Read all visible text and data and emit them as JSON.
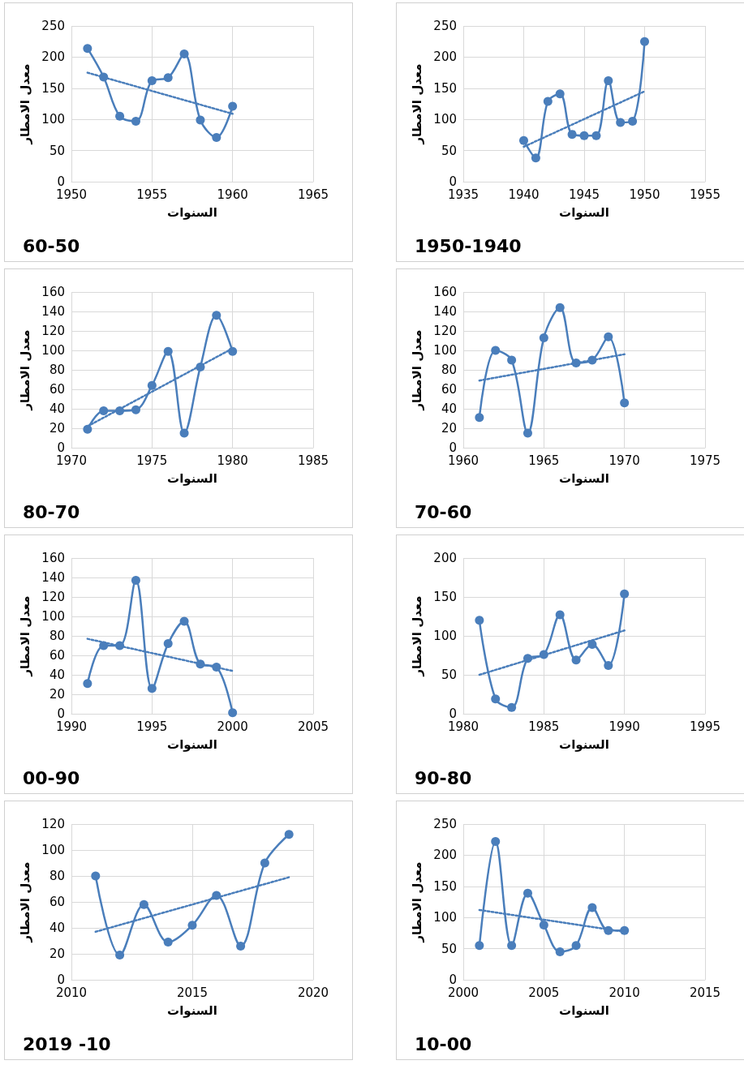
{
  "chart_data": [
    {
      "type": "line",
      "xlabel": "السنوات",
      "ylabel": "معدل الامطار",
      "annotations": [
        "60-50"
      ],
      "xlim": [
        1950,
        1965
      ],
      "xticks": [
        1950,
        1955,
        1960,
        1965
      ],
      "ylim": [
        0,
        250
      ],
      "yticks": [
        0,
        50,
        100,
        150,
        200,
        250
      ],
      "grid": true,
      "series": [
        {
          "color": "#4a7ebb",
          "marker": "circle",
          "line_style": "solid",
          "x": [
            1951,
            1952,
            1953,
            1954,
            1955,
            1956,
            1957,
            1958,
            1959,
            1960
          ],
          "values": [
            214,
            168,
            105,
            97,
            162,
            167,
            205,
            99,
            71,
            121
          ]
        },
        {
          "color": "#4a7ebb",
          "marker": "none",
          "line_style": "dotted",
          "x": [
            1951,
            1960
          ],
          "values": [
            175,
            109
          ]
        }
      ]
    },
    {
      "type": "line",
      "xlabel": "السنوات",
      "ylabel": "معدل الامطار",
      "annotations": [
        "1950-1940"
      ],
      "xlim": [
        1935,
        1955
      ],
      "xticks": [
        1935,
        1940,
        1945,
        1950,
        1955
      ],
      "ylim": [
        0,
        250
      ],
      "yticks": [
        0,
        50,
        100,
        150,
        200,
        250
      ],
      "grid": true,
      "series": [
        {
          "color": "#4a7ebb",
          "marker": "circle",
          "line_style": "solid",
          "x": [
            1940,
            1941,
            1942,
            1943,
            1944,
            1945,
            1946,
            1947,
            1948,
            1949,
            1950
          ],
          "values": [
            66,
            38,
            129,
            141,
            76,
            74,
            74,
            162,
            95,
            97,
            225
          ]
        },
        {
          "color": "#4a7ebb",
          "marker": "none",
          "line_style": "dotted",
          "x": [
            1940,
            1950
          ],
          "values": [
            56,
            145
          ]
        }
      ]
    },
    {
      "type": "line",
      "xlabel": "السنوات",
      "ylabel": "معدل الامطار",
      "annotations": [
        "80-70"
      ],
      "xlim": [
        1970,
        1985
      ],
      "xticks": [
        1970,
        1975,
        1980,
        1985
      ],
      "ylim": [
        0,
        160
      ],
      "yticks": [
        0,
        20,
        40,
        60,
        80,
        100,
        120,
        140,
        160
      ],
      "grid": true,
      "series": [
        {
          "color": "#4a7ebb",
          "marker": "circle",
          "line_style": "solid",
          "x": [
            1971,
            1972,
            1973,
            1974,
            1975,
            1976,
            1977,
            1978,
            1979,
            1980
          ],
          "values": [
            19,
            38,
            38,
            39,
            64,
            99,
            15,
            83,
            136,
            99
          ]
        },
        {
          "color": "#4a7ebb",
          "marker": "none",
          "line_style": "dotted",
          "x": [
            1971,
            1980
          ],
          "values": [
            22,
            102
          ]
        }
      ]
    },
    {
      "type": "line",
      "xlabel": "السنوات",
      "ylabel": "معدل الامطار",
      "annotations": [
        "70-60"
      ],
      "xlim": [
        1960,
        1975
      ],
      "xticks": [
        1960,
        1965,
        1970,
        1975
      ],
      "ylim": [
        0,
        160
      ],
      "yticks": [
        0,
        20,
        40,
        60,
        80,
        100,
        120,
        140,
        160
      ],
      "grid": true,
      "series": [
        {
          "color": "#4a7ebb",
          "marker": "circle",
          "line_style": "solid",
          "x": [
            1961,
            1962,
            1963,
            1964,
            1965,
            1966,
            1967,
            1968,
            1969,
            1970
          ],
          "values": [
            31,
            100,
            90,
            15,
            113,
            144,
            87,
            90,
            114,
            46
          ]
        },
        {
          "color": "#4a7ebb",
          "marker": "none",
          "line_style": "dotted",
          "x": [
            1961,
            1970
          ],
          "values": [
            69,
            96
          ]
        }
      ]
    },
    {
      "type": "line",
      "xlabel": "السنوات",
      "ylabel": "معدل الامطار",
      "annotations": [
        "00-90"
      ],
      "xlim": [
        1990,
        2005
      ],
      "xticks": [
        1990,
        1995,
        2000,
        2005
      ],
      "ylim": [
        0,
        160
      ],
      "yticks": [
        0,
        20,
        40,
        60,
        80,
        100,
        120,
        140,
        160
      ],
      "grid": true,
      "series": [
        {
          "color": "#4a7ebb",
          "marker": "circle",
          "line_style": "solid",
          "x": [
            1991,
            1992,
            1993,
            1994,
            1995,
            1996,
            1997,
            1998,
            1999,
            2000
          ],
          "values": [
            31,
            70,
            70,
            137,
            26,
            72,
            95,
            51,
            48,
            1
          ]
        },
        {
          "color": "#4a7ebb",
          "marker": "none",
          "line_style": "dotted",
          "x": [
            1991,
            2000
          ],
          "values": [
            77,
            44
          ]
        }
      ]
    },
    {
      "type": "line",
      "xlabel": "السنوات",
      "ylabel": "معدل الامطار",
      "annotations": [
        "90-80"
      ],
      "xlim": [
        1980,
        1995
      ],
      "xticks": [
        1980,
        1985,
        1990,
        1995
      ],
      "ylim": [
        0,
        200
      ],
      "yticks": [
        0,
        50,
        100,
        150,
        200
      ],
      "grid": true,
      "series": [
        {
          "color": "#4a7ebb",
          "marker": "circle",
          "line_style": "solid",
          "x": [
            1981,
            1982,
            1983,
            1984,
            1985,
            1986,
            1987,
            1988,
            1989,
            1990
          ],
          "values": [
            120,
            19,
            8,
            71,
            76,
            127,
            69,
            89,
            62,
            154
          ]
        },
        {
          "color": "#4a7ebb",
          "marker": "none",
          "line_style": "dotted",
          "x": [
            1981,
            1990
          ],
          "values": [
            50,
            107
          ]
        }
      ]
    },
    {
      "type": "line",
      "xlabel": "السنوات",
      "ylabel": "معدل الامطار",
      "annotations": [
        "2019 -10"
      ],
      "xlim": [
        2010,
        2020
      ],
      "xticks": [
        2010,
        2015,
        2020
      ],
      "ylim": [
        0,
        120
      ],
      "yticks": [
        0,
        20,
        40,
        60,
        80,
        100,
        120
      ],
      "grid": true,
      "series": [
        {
          "color": "#4a7ebb",
          "marker": "circle",
          "line_style": "solid",
          "x": [
            2011,
            2012,
            2013,
            2014,
            2015,
            2016,
            2017,
            2018,
            2019
          ],
          "values": [
            80,
            19,
            58,
            29,
            42,
            65,
            26,
            90,
            112
          ]
        },
        {
          "color": "#4a7ebb",
          "marker": "none",
          "line_style": "dotted",
          "x": [
            2011,
            2019
          ],
          "values": [
            37,
            79
          ]
        }
      ]
    },
    {
      "type": "line",
      "xlabel": "السنوات",
      "ylabel": "معدل الامطار",
      "annotations": [
        "10-00"
      ],
      "xlim": [
        2000,
        2015
      ],
      "xticks": [
        2000,
        2005,
        2010,
        2015
      ],
      "ylim": [
        0,
        250
      ],
      "yticks": [
        0,
        50,
        100,
        150,
        200,
        250
      ],
      "grid": true,
      "series": [
        {
          "color": "#4a7ebb",
          "marker": "circle",
          "line_style": "solid",
          "x": [
            2001,
            2002,
            2003,
            2004,
            2005,
            2006,
            2007,
            2008,
            2009,
            2010
          ],
          "values": [
            55,
            222,
            55,
            139,
            88,
            45,
            55,
            116,
            79,
            79
          ]
        },
        {
          "color": "#4a7ebb",
          "marker": "none",
          "line_style": "dotted",
          "x": [
            2001,
            2010
          ],
          "values": [
            112,
            77
          ]
        }
      ]
    }
  ]
}
